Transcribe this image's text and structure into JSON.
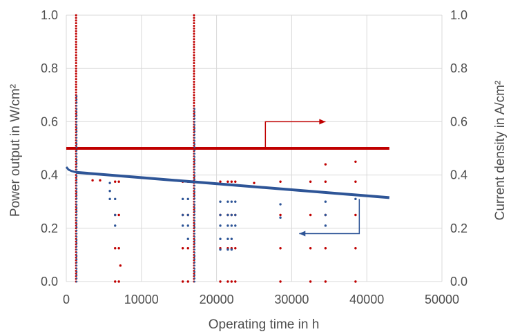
{
  "chart_data": {
    "type": "scatter",
    "title": "",
    "xlabel": "Operating time in h",
    "ylabel_left": "Power output in W/cm²",
    "ylabel_right": "Current density in A/cm²",
    "xlim": [
      0,
      50000
    ],
    "ylim_left": [
      0,
      1.0
    ],
    "ylim_right": [
      0,
      1.0
    ],
    "grid": true,
    "legend": "none",
    "x_ticks": [
      0,
      10000,
      20000,
      30000,
      40000,
      50000
    ],
    "y_ticks_left": [
      "0.0",
      "0.2",
      "0.4",
      "0.6",
      "0.8",
      "1.0"
    ],
    "y_ticks_right": [
      "0.0",
      "0.2",
      "0.4",
      "0.6",
      "0.8",
      "1.0"
    ],
    "series": [
      {
        "axis": "right",
        "color": "#c00000",
        "baseline": {
          "x_start": 0,
          "x_end": 43000,
          "y": 0.5
        },
        "vertical_sweeps": [
          {
            "x": 1300,
            "y_min": 0.0,
            "y_max": 1.0
          },
          {
            "x": 17000,
            "y_min": 0.0,
            "y_max": 1.0
          }
        ],
        "outlier_x": [
          6500,
          7000,
          15500,
          16200,
          20500,
          21500,
          22000,
          22500,
          28500,
          32500,
          34500,
          38500
        ],
        "outlier_y": [
          0.375,
          0.25,
          0.125,
          0.0
        ],
        "points": [
          [
            25000,
            0.37
          ],
          [
            34500,
            0.44
          ],
          [
            38500,
            0.45
          ],
          [
            7200,
            0.06
          ],
          [
            3500,
            0.38
          ],
          [
            4500,
            0.38
          ]
        ]
      },
      {
        "axis": "left",
        "color": "#2e5597",
        "start_curve": [
          [
            0,
            0.43
          ],
          [
            300,
            0.42
          ],
          [
            700,
            0.415
          ],
          [
            1300,
            0.41
          ]
        ],
        "trend": {
          "x_start": 1300,
          "x_end": 43000,
          "y_start": 0.41,
          "y_end": 0.315
        },
        "vertical_sweeps": [
          {
            "x": 1300,
            "y_min": 0.0,
            "y_max": 0.7
          },
          {
            "x": 17000,
            "y_min": 0.0,
            "y_max": 0.65
          }
        ],
        "drops": [
          {
            "x": 5800,
            "levels": [
              0.37,
              0.34,
              0.31
            ]
          },
          {
            "x": 6500,
            "levels": [
              0.31,
              0.25,
              0.21
            ]
          },
          {
            "x": 15500,
            "levels": [
              0.31,
              0.25,
              0.21
            ]
          },
          {
            "x": 16200,
            "levels": [
              0.31,
              0.25,
              0.21,
              0.16
            ]
          },
          {
            "x": 20500,
            "levels": [
              0.3,
              0.25,
              0.21,
              0.16,
              0.12
            ]
          },
          {
            "x": 21500,
            "levels": [
              0.3,
              0.25,
              0.21,
              0.16,
              0.12
            ]
          },
          {
            "x": 22000,
            "levels": [
              0.3,
              0.25,
              0.21,
              0.16,
              0.12
            ]
          },
          {
            "x": 22500,
            "levels": [
              0.3,
              0.25,
              0.21
            ]
          },
          {
            "x": 28500,
            "levels": [
              0.29,
              0.24
            ]
          },
          {
            "x": 34500,
            "levels": [
              0.3,
              0.25,
              0.21
            ]
          },
          {
            "x": 38500,
            "levels": [
              0.31
            ]
          }
        ]
      }
    ],
    "annotations": [
      {
        "type": "arrow",
        "points": [
          [
            26500,
            0.495
          ],
          [
            26500,
            0.6
          ],
          [
            34500,
            0.6
          ]
        ],
        "color": "#c00000",
        "points_to": "right-axis"
      },
      {
        "type": "arrow",
        "points": [
          [
            39000,
            0.31
          ],
          [
            39000,
            0.18
          ],
          [
            31000,
            0.18
          ]
        ],
        "color": "#2e5597",
        "points_to": "left-axis"
      }
    ]
  }
}
